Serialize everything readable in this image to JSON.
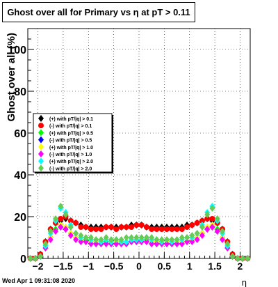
{
  "chart_data": {
    "type": "scatter",
    "title": "Ghost over all for Primary vs  η at pT > 0.11",
    "xlabel": "η",
    "ylabel": "Ghost over all (%)",
    "xlim": [
      -2.2,
      2.2
    ],
    "ylim": [
      0,
      110
    ],
    "x_ticks": [
      "−2",
      "−1.5",
      "−1",
      "−0.5",
      "0",
      "0.5",
      "1",
      "1.5",
      "2"
    ],
    "x_tick_values": [
      -2,
      -1.5,
      -1,
      -0.5,
      0,
      0.5,
      1,
      1.5,
      2
    ],
    "y_ticks": [
      "0",
      "20",
      "40",
      "60",
      "80",
      "100"
    ],
    "y_tick_values": [
      0,
      20,
      40,
      60,
      80,
      100
    ],
    "grid": true,
    "legend_position": "left-middle",
    "x": [
      -2.15,
      -2.05,
      -1.95,
      -1.85,
      -1.75,
      -1.65,
      -1.55,
      -1.45,
      -1.35,
      -1.25,
      -1.15,
      -1.05,
      -0.95,
      -0.85,
      -0.75,
      -0.65,
      -0.55,
      -0.45,
      -0.35,
      -0.25,
      -0.15,
      -0.05,
      0.05,
      0.15,
      0.25,
      0.35,
      0.45,
      0.55,
      0.65,
      0.75,
      0.85,
      0.95,
      1.05,
      1.15,
      1.25,
      1.35,
      1.45,
      1.55,
      1.65,
      1.75,
      1.85,
      1.95,
      2.05,
      2.15
    ],
    "series": [
      {
        "name": "(+) with pT/|q| > 0.1",
        "color": "#000000",
        "marker": "diamond",
        "values": [
          0,
          0,
          2,
          8,
          14,
          17,
          18,
          19,
          18,
          17,
          16,
          15,
          15,
          15,
          15,
          15,
          15,
          15,
          15,
          15,
          16,
          16,
          16,
          15,
          15,
          15,
          15,
          15,
          15,
          15,
          15,
          16,
          16,
          17,
          18,
          19,
          18,
          17,
          14,
          8,
          2,
          0,
          0,
          0
        ]
      },
      {
        "name": "(-) with pT/|q| > 0.1",
        "color": "#ff0000",
        "marker": "circle",
        "values": [
          0,
          0,
          2,
          8,
          14,
          17,
          19,
          20,
          18,
          17,
          15,
          15,
          14,
          14,
          14,
          15,
          15,
          14,
          15,
          15,
          15,
          16,
          16,
          15,
          14,
          14,
          14,
          14,
          14,
          14,
          14,
          15,
          16,
          17,
          18,
          19,
          19,
          17,
          14,
          8,
          2,
          0,
          0,
          0
        ]
      },
      {
        "name": "(+) with pT/|q| > 0.5",
        "color": "#00ff00",
        "marker": "diamond",
        "values": [
          0,
          0,
          1,
          6,
          10,
          14,
          16,
          15,
          12,
          10,
          9,
          9,
          8,
          8,
          8,
          8,
          8,
          8,
          8,
          8,
          9,
          9,
          9,
          9,
          8,
          8,
          8,
          8,
          8,
          8,
          8,
          8,
          9,
          10,
          12,
          15,
          16,
          14,
          10,
          6,
          1,
          0,
          0,
          0
        ]
      },
      {
        "name": "(-) with pT/|q| > 0.5",
        "color": "#0000ff",
        "marker": "diamond",
        "values": [
          0,
          0,
          1,
          5,
          10,
          13,
          15,
          14,
          12,
          10,
          9,
          8,
          8,
          7,
          7,
          7,
          7,
          7,
          7,
          7,
          8,
          8,
          8,
          8,
          7,
          7,
          7,
          7,
          7,
          7,
          7,
          8,
          9,
          10,
          12,
          14,
          15,
          13,
          10,
          5,
          1,
          0,
          0,
          0
        ]
      },
      {
        "name": "(+) with pT/|q| > 1.0",
        "color": "#ffff00",
        "marker": "diamond",
        "values": [
          0,
          0,
          1,
          5,
          10,
          13,
          16,
          15,
          12,
          10,
          9,
          8,
          8,
          8,
          8,
          7,
          8,
          8,
          8,
          8,
          8,
          8,
          8,
          8,
          8,
          8,
          7,
          8,
          8,
          8,
          8,
          8,
          9,
          10,
          12,
          15,
          16,
          13,
          10,
          5,
          1,
          0,
          0,
          0
        ]
      },
      {
        "name": "(-) with pT/|q| > 1.0",
        "color": "#ff00ff",
        "marker": "diamond",
        "values": [
          0,
          0,
          1,
          5,
          9,
          13,
          15,
          14,
          11,
          9,
          8,
          8,
          7,
          7,
          7,
          7,
          7,
          7,
          7,
          7,
          8,
          8,
          8,
          8,
          7,
          7,
          7,
          7,
          7,
          7,
          7,
          8,
          8,
          9,
          11,
          14,
          15,
          13,
          9,
          5,
          1,
          0,
          0,
          0
        ]
      },
      {
        "name": "(+) with pT/|q| > 2.0",
        "color": "#00ffff",
        "marker": "diamond",
        "values": [
          0,
          0,
          1,
          6,
          12,
          18,
          24,
          22,
          16,
          12,
          10,
          10,
          9,
          9,
          8,
          9,
          8,
          9,
          8,
          8,
          9,
          9,
          9,
          10,
          9,
          9,
          8,
          9,
          8,
          9,
          9,
          10,
          10,
          12,
          16,
          22,
          25,
          18,
          12,
          6,
          1,
          0,
          0,
          0
        ]
      },
      {
        "name": "(-) with pT/|q| > 2.0",
        "color": "#66cc55",
        "marker": "diamond",
        "values": [
          0,
          0,
          1,
          7,
          13,
          19,
          25,
          21,
          15,
          12,
          11,
          10,
          10,
          9,
          9,
          10,
          9,
          9,
          9,
          10,
          10,
          10,
          10,
          10,
          10,
          9,
          9,
          9,
          9,
          9,
          10,
          10,
          11,
          12,
          15,
          21,
          24,
          19,
          13,
          7,
          1,
          0,
          0,
          0
        ]
      }
    ]
  },
  "timestamp": "Wed Apr  1 09:31:08 2020"
}
